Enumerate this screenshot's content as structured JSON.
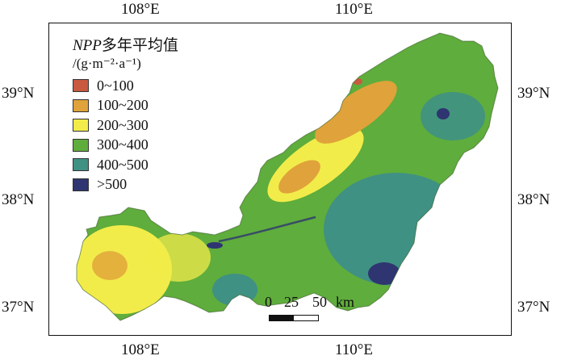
{
  "axes": {
    "top": [
      "108°E",
      "110°E"
    ],
    "bottom": [
      "108°E",
      "110°E"
    ],
    "left": [
      "39°N",
      "38°N",
      "37°N"
    ],
    "right": [
      "39°N",
      "38°N",
      "37°N"
    ]
  },
  "legend": {
    "title_italic": "NPP",
    "title_rest": "多年平均值",
    "unit": "/(g·m⁻²·a⁻¹)",
    "items": [
      {
        "label": "0~100",
        "color": "#c85a40"
      },
      {
        "label": "100~200",
        "color": "#e0a23a"
      },
      {
        "label": "200~300",
        "color": "#f2ec4a"
      },
      {
        "label": "300~400",
        "color": "#5fad3c"
      },
      {
        "label": "400~500",
        "color": "#3f9184"
      },
      {
        "label": ">500",
        "color": "#2e3570"
      }
    ]
  },
  "scale_bar": {
    "ticks": [
      "0",
      "25",
      "50"
    ],
    "unit": "km"
  },
  "colors": {
    "frame": "#111111",
    "yellow": "#f2ec4a",
    "orange": "#e0a23a",
    "green": "#5fad3c",
    "teal": "#3f9184",
    "navy": "#2e3570",
    "red": "#c85a40"
  }
}
